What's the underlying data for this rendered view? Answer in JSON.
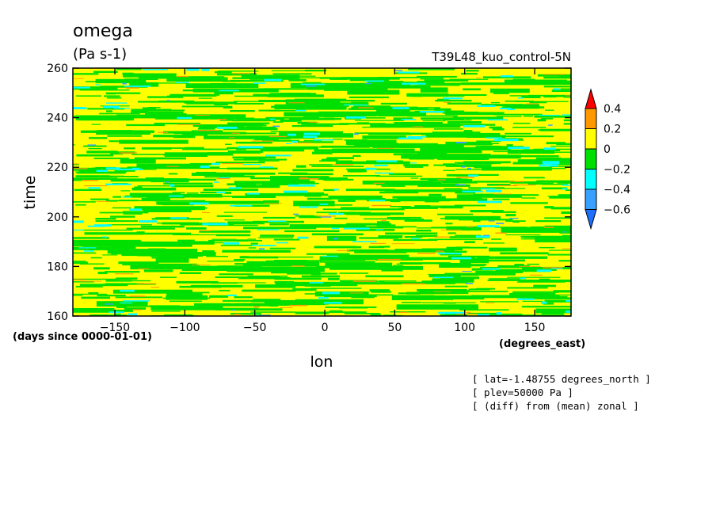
{
  "chart_data": {
    "type": "heatmap",
    "title": "omega",
    "units": "(Pa s-1)",
    "run_label": "T39L48_kuo_control-5N",
    "xlabel": "lon",
    "x_units": "(degrees_east)",
    "ylabel": "time",
    "y_units": "(days since 0000-01-01)",
    "xlim": [
      -180,
      176
    ],
    "ylim": [
      160,
      260
    ],
    "x_ticks": [
      -150,
      -100,
      -50,
      0,
      50,
      100,
      150
    ],
    "x_tick_labels": [
      "−150",
      "−100",
      "−50",
      "0",
      "50",
      "100",
      "150"
    ],
    "y_ticks": [
      160,
      180,
      200,
      220,
      240,
      260
    ],
    "y_tick_labels": [
      "160",
      "180",
      "200",
      "220",
      "240",
      "260"
    ],
    "colorbar": {
      "levels": [
        -0.6,
        -0.4,
        -0.2,
        0,
        0.2,
        0.4
      ],
      "level_labels": [
        "−0.6",
        "−0.4",
        "−0.2",
        "0",
        "0.2",
        "0.4"
      ],
      "colors": [
        "#1e6eff",
        "#39a0ff",
        "#00ffff",
        "#00e000",
        "#ffff00",
        "#ff9900",
        "#ff0000"
      ],
      "extend": "both"
    },
    "dominant_value_range": [
      -0.2,
      0.2
    ],
    "grid": false
  },
  "annotations": [
    "[ lat=-1.48755 degrees_north ]",
    "[ plev=50000 Pa ]",
    "[ (diff) from (mean) zonal ]"
  ]
}
